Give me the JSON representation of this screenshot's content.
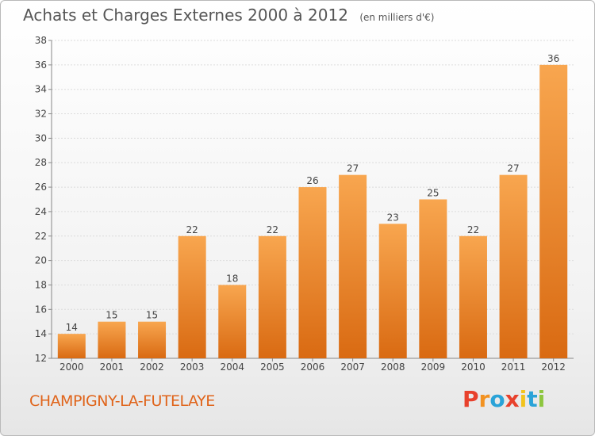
{
  "title": "Achats et Charges Externes 2000 à 2012",
  "unit_note": "(en milliers d'€)",
  "place": "CHAMPIGNY-LA-FUTELAYE",
  "logo": {
    "text": "Proxiti",
    "colors": [
      "#e8412c",
      "#f29221",
      "#2aa3d8",
      "#e8412c",
      "#f2c31c",
      "#2aa3d8",
      "#8dc63f"
    ]
  },
  "colors": {
    "bar_top": "#f8a64f",
    "bar_bottom": "#d96a12",
    "title": "#555555",
    "place": "#e0641a"
  },
  "chart_data": {
    "type": "bar",
    "categories": [
      "2000",
      "2001",
      "2002",
      "2003",
      "2004",
      "2005",
      "2006",
      "2007",
      "2008",
      "2009",
      "2010",
      "2011",
      "2012"
    ],
    "values": [
      14,
      15,
      15,
      22,
      18,
      22,
      26,
      27,
      23,
      25,
      22,
      27,
      36
    ],
    "title": "Achats et Charges Externes 2000 à 2012",
    "ylim": [
      12,
      38
    ],
    "yticks": [
      12,
      14,
      16,
      18,
      20,
      22,
      24,
      26,
      28,
      30,
      32,
      34,
      36,
      38
    ],
    "grid": true,
    "legend": "none"
  }
}
